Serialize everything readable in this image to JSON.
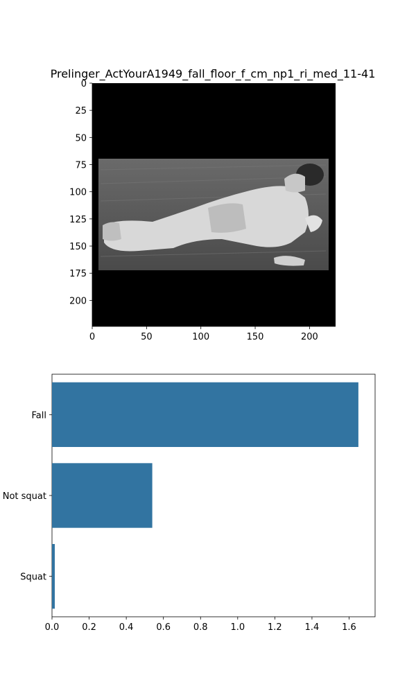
{
  "image_panel": {
    "title": "Prelinger_ActYourA1949_fall_floor_f_cm_np1_ri_med_11-41",
    "image_description": "grayscale video frame: person lying on the floor, letterboxed with black bars",
    "x_ticks": [
      0,
      50,
      100,
      150,
      200
    ],
    "y_ticks": [
      0,
      25,
      50,
      75,
      100,
      125,
      150,
      175,
      200
    ],
    "x_range": [
      0,
      224
    ],
    "y_range": [
      0,
      224
    ]
  },
  "chart_data": {
    "type": "bar",
    "orientation": "horizontal",
    "categories": [
      "Fall",
      "Not squat",
      "Squat"
    ],
    "values": [
      1.65,
      0.54,
      0.015
    ],
    "xlim": [
      0,
      1.74
    ],
    "x_ticks": [
      0.0,
      0.2,
      0.4,
      0.6,
      0.8,
      1.0,
      1.2,
      1.4,
      1.6
    ],
    "x_tick_labels": [
      "0.0",
      "0.2",
      "0.4",
      "0.6",
      "0.8",
      "1.0",
      "1.2",
      "1.4",
      "1.6"
    ],
    "xlabel": "",
    "ylabel": "",
    "title": "",
    "bar_color": "#3274a1",
    "grid": false
  }
}
